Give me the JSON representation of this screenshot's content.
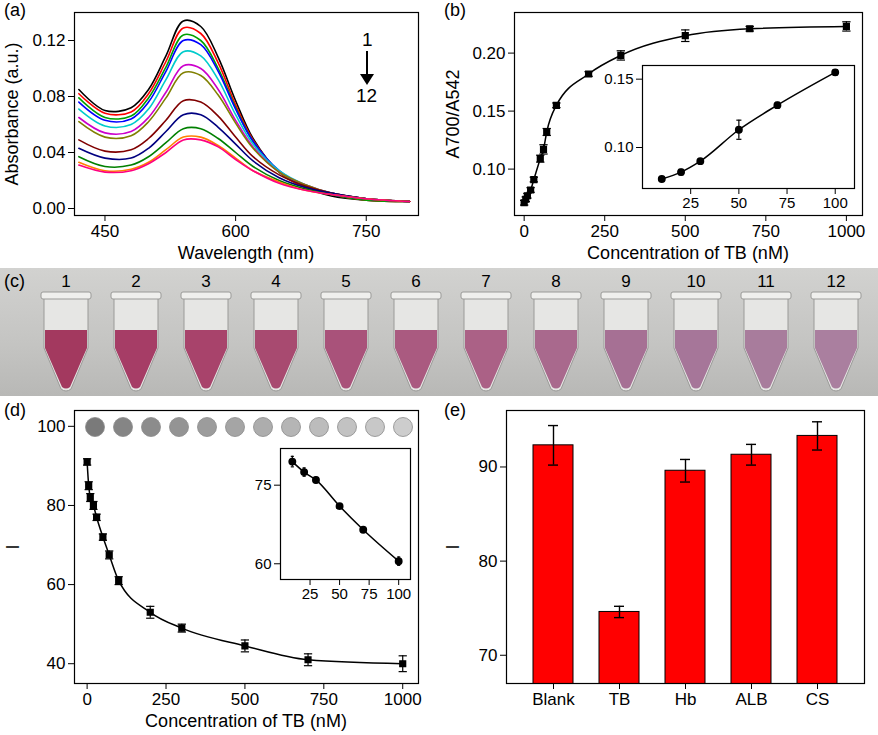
{
  "chart_data": [
    {
      "title": "(a)",
      "type": "line",
      "x_label": "Wavelength (nm)",
      "y_label": "Absorbance (a.u.)",
      "annotations": [
        "1",
        "12"
      ],
      "x": [
        420,
        450,
        480,
        500,
        520,
        540,
        560,
        580,
        600,
        620,
        650,
        680,
        710,
        750,
        800
      ],
      "series": [
        {
          "color": "#000000",
          "values": [
            0.085,
            0.07,
            0.072,
            0.085,
            0.109,
            0.134,
            0.13,
            0.108,
            0.077,
            0.05,
            0.026,
            0.015,
            0.009,
            0.006,
            0.005
          ]
        },
        {
          "color": "#ff0000",
          "values": [
            0.082,
            0.068,
            0.069,
            0.082,
            0.105,
            0.129,
            0.125,
            0.104,
            0.074,
            0.049,
            0.026,
            0.015,
            0.01,
            0.006,
            0.005
          ]
        },
        {
          "color": "#00a000",
          "values": [
            0.079,
            0.065,
            0.066,
            0.079,
            0.101,
            0.124,
            0.12,
            0.1,
            0.072,
            0.048,
            0.026,
            0.016,
            0.01,
            0.006,
            0.005
          ]
        },
        {
          "color": "#0000ff",
          "values": [
            0.076,
            0.063,
            0.064,
            0.076,
            0.098,
            0.12,
            0.117,
            0.098,
            0.071,
            0.048,
            0.027,
            0.016,
            0.01,
            0.007,
            0.005
          ]
        },
        {
          "color": "#00cccc",
          "values": [
            0.071,
            0.059,
            0.06,
            0.071,
            0.092,
            0.112,
            0.109,
            0.092,
            0.067,
            0.046,
            0.027,
            0.017,
            0.011,
            0.007,
            0.005
          ]
        },
        {
          "color": "#cc00cc",
          "values": [
            0.065,
            0.054,
            0.055,
            0.065,
            0.083,
            0.102,
            0.1,
            0.085,
            0.063,
            0.044,
            0.026,
            0.017,
            0.011,
            0.007,
            0.005
          ]
        },
        {
          "color": "#808000",
          "values": [
            0.062,
            0.051,
            0.052,
            0.062,
            0.079,
            0.097,
            0.095,
            0.081,
            0.061,
            0.043,
            0.026,
            0.017,
            0.011,
            0.007,
            0.005
          ]
        },
        {
          "color": "#800000",
          "values": [
            0.049,
            0.041,
            0.042,
            0.05,
            0.063,
            0.077,
            0.076,
            0.066,
            0.051,
            0.037,
            0.024,
            0.016,
            0.011,
            0.007,
            0.005
          ]
        },
        {
          "color": "#000080",
          "values": [
            0.043,
            0.036,
            0.036,
            0.043,
            0.055,
            0.067,
            0.067,
            0.058,
            0.046,
            0.034,
            0.022,
            0.015,
            0.011,
            0.007,
            0.005
          ]
        },
        {
          "color": "#008000",
          "values": [
            0.037,
            0.03,
            0.031,
            0.037,
            0.047,
            0.057,
            0.057,
            0.05,
            0.04,
            0.03,
            0.02,
            0.014,
            0.01,
            0.007,
            0.005
          ]
        },
        {
          "color": "#ff8000",
          "values": [
            0.033,
            0.027,
            0.028,
            0.033,
            0.042,
            0.051,
            0.051,
            0.045,
            0.036,
            0.027,
            0.019,
            0.013,
            0.01,
            0.007,
            0.005
          ]
        },
        {
          "color": "#ff0080",
          "values": [
            0.031,
            0.026,
            0.027,
            0.032,
            0.04,
            0.049,
            0.049,
            0.044,
            0.035,
            0.027,
            0.018,
            0.013,
            0.01,
            0.007,
            0.005
          ]
        }
      ],
      "xlim": [
        415,
        810
      ],
      "xticks": [
        450,
        600,
        750
      ],
      "ylim": [
        -0.005,
        0.14
      ],
      "yticks": [
        {
          "value": 0,
          "label": "0.00"
        },
        {
          "value": 0.04,
          "label": "0.04"
        },
        {
          "value": 0.08,
          "label": "0.08"
        },
        {
          "value": 0.12,
          "label": "0.12"
        }
      ]
    },
    {
      "title": "(b)",
      "type": "scatter",
      "marker": "square",
      "x_label": "Concentration of TB (nM)",
      "y_label": "A700/A542",
      "x": [
        0,
        5,
        10,
        20,
        30,
        50,
        60,
        70,
        100,
        200,
        300,
        500,
        700,
        1000
      ],
      "values": [
        0.071,
        0.074,
        0.077,
        0.082,
        0.091,
        0.109,
        0.117,
        0.132,
        0.155,
        0.182,
        0.198,
        0.215,
        0.221,
        0.223
      ],
      "errors": [
        0.002,
        0.002,
        0.002,
        0.002,
        0.002,
        0.003,
        0.004,
        0.003,
        0.002,
        0.002,
        0.004,
        0.005,
        0.002,
        0.004
      ],
      "xlim": [
        -30,
        1050
      ],
      "xticks": [
        0,
        250,
        500,
        750,
        1000
      ],
      "ylim": [
        0.06,
        0.235
      ],
      "yticks": [
        {
          "value": 0.1,
          "label": "0.10"
        },
        0.15,
        {
          "value": 0.2,
          "label": "0.20"
        }
      ],
      "inset": {
        "x": [
          10,
          20,
          30,
          50,
          70,
          100
        ],
        "values": [
          0.077,
          0.082,
          0.09,
          0.113,
          0.131,
          0.155
        ],
        "errors": [
          0.001,
          0.002,
          0.001,
          0.007,
          0.002,
          0.002
        ],
        "xlim": [
          0,
          110
        ],
        "xticks": [
          25,
          50,
          75,
          100
        ],
        "ylim": [
          0.07,
          0.16
        ],
        "yticks": [
          {
            "value": 0.1,
            "label": "0.10"
          },
          0.15
        ]
      }
    },
    {
      "title": "(c)",
      "type": "photo",
      "labels": [
        "1",
        "2",
        "3",
        "4",
        "5",
        "6",
        "7",
        "8",
        "9",
        "10",
        "11",
        "12"
      ],
      "colors": [
        "#a3395f",
        "#a63d66",
        "#a8436b",
        "#a84a70",
        "#a9527a",
        "#aa5a80",
        "#ab6186",
        "#a9698d",
        "#a67094",
        "#a67699",
        "#a87c9c",
        "#aa7f9f"
      ]
    },
    {
      "title": "(d)",
      "type": "scatter",
      "marker": "square",
      "x_label": "Concentration of TB (nM)",
      "y_label": "I",
      "x": [
        0,
        5,
        10,
        20,
        30,
        50,
        70,
        100,
        200,
        300,
        500,
        700,
        1000
      ],
      "values": [
        91,
        85,
        82,
        80,
        77,
        72,
        67.5,
        61,
        53,
        49,
        44.5,
        41,
        40
      ],
      "errors": [
        0.8,
        1,
        1,
        1,
        0.8,
        0.8,
        1,
        1,
        1.5,
        1,
        1.5,
        1.5,
        2
      ],
      "xlim": [
        -40,
        1050
      ],
      "xticks": [
        0,
        250,
        500,
        750,
        1000
      ],
      "ylim": [
        35,
        104
      ],
      "yticks": [
        40,
        60,
        80,
        100
      ],
      "image_colors": [
        "#7a7a7a",
        "#858585",
        "#8c8c8c",
        "#949494",
        "#9c9c9c",
        "#a5a5a5",
        "#adadad",
        "#b5b5b5",
        "#bcbcbc",
        "#c2c2c2",
        "#c8c8c8",
        "#cdcdcd"
      ],
      "inset": {
        "x": [
          10,
          20,
          30,
          50,
          70,
          100
        ],
        "values": [
          79.5,
          77.5,
          76,
          71,
          66.5,
          60.5
        ],
        "errors": [
          1,
          0.8,
          0.5,
          0.4,
          0.4,
          0.8
        ],
        "xlim": [
          0,
          110
        ],
        "xticks": [
          25,
          50,
          75,
          100
        ],
        "ylim": [
          57,
          82
        ],
        "yticks": [
          60,
          75
        ]
      }
    },
    {
      "title": "(e)",
      "type": "bar",
      "y_label": "I",
      "color": "#ff0000",
      "categories": [
        "Blank",
        "TB",
        "Hb",
        "ALB",
        "CS"
      ],
      "values": [
        92.3,
        74.6,
        89.6,
        91.3,
        93.3
      ],
      "errors": [
        2.1,
        0.6,
        1.2,
        1.1,
        1.5
      ],
      "ylim": [
        67,
        96
      ],
      "yticks": [
        70,
        80,
        90
      ]
    }
  ]
}
